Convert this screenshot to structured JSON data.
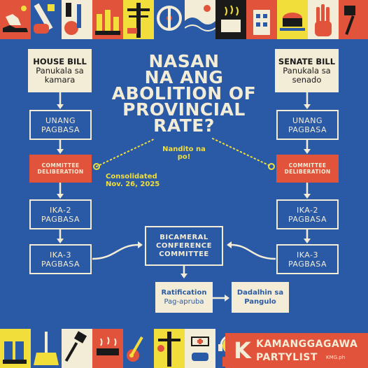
{
  "title": {
    "line1": "NASAN",
    "line2": "NA ANG",
    "line3": "ABOLITION OF",
    "line4": "PROVINCIAL",
    "line5": "RATE?"
  },
  "notes": {
    "current": "Nandito na po!",
    "consolidated_line1": "Consolidated",
    "consolidated_line2": "Nov. 26, 2025"
  },
  "house": {
    "header_bold": "HOUSE BILL",
    "header_sub1": "Panukala sa",
    "header_sub2": "kamara",
    "step1_l1": "UNANG",
    "step1_l2": "PAGBASA",
    "step2_l1": "COMMITTEE",
    "step2_l2": "DELIBERATION",
    "step3_l1": "IKA-2",
    "step3_l2": "PAGBASA",
    "step4_l1": "IKA-3",
    "step4_l2": "PAGBASA"
  },
  "senate": {
    "header_bold": "SENATE BILL",
    "header_sub1": "Panukala sa",
    "header_sub2": "senado",
    "step1_l1": "UNANG",
    "step1_l2": "PAGBASA",
    "step2_l1": "COMMITTEE",
    "step2_l2": "DELIBERATION",
    "step3_l1": "IKA-2",
    "step3_l2": "PAGBASA",
    "step4_l1": "IKA-3",
    "step4_l2": "PAGBASA"
  },
  "bicam": {
    "l1": "BICAMERAL",
    "l2": "CONFERENCE",
    "l3": "COMMITTEE"
  },
  "ratification": {
    "l1": "Ratification",
    "l2": "Pag-apruba"
  },
  "president": {
    "l1": "Dadalhin sa",
    "l2": "Pangulo"
  },
  "brand": {
    "name_l1": "KAMANGGAGAWA",
    "name_l2": "PARTYLIST",
    "handle": "KMG.ph",
    "logo_letter": "K"
  },
  "colors": {
    "background": "#2a5aa6",
    "cream": "#f3ecd6",
    "red": "#e2533b",
    "yellow": "#f2de3a"
  }
}
